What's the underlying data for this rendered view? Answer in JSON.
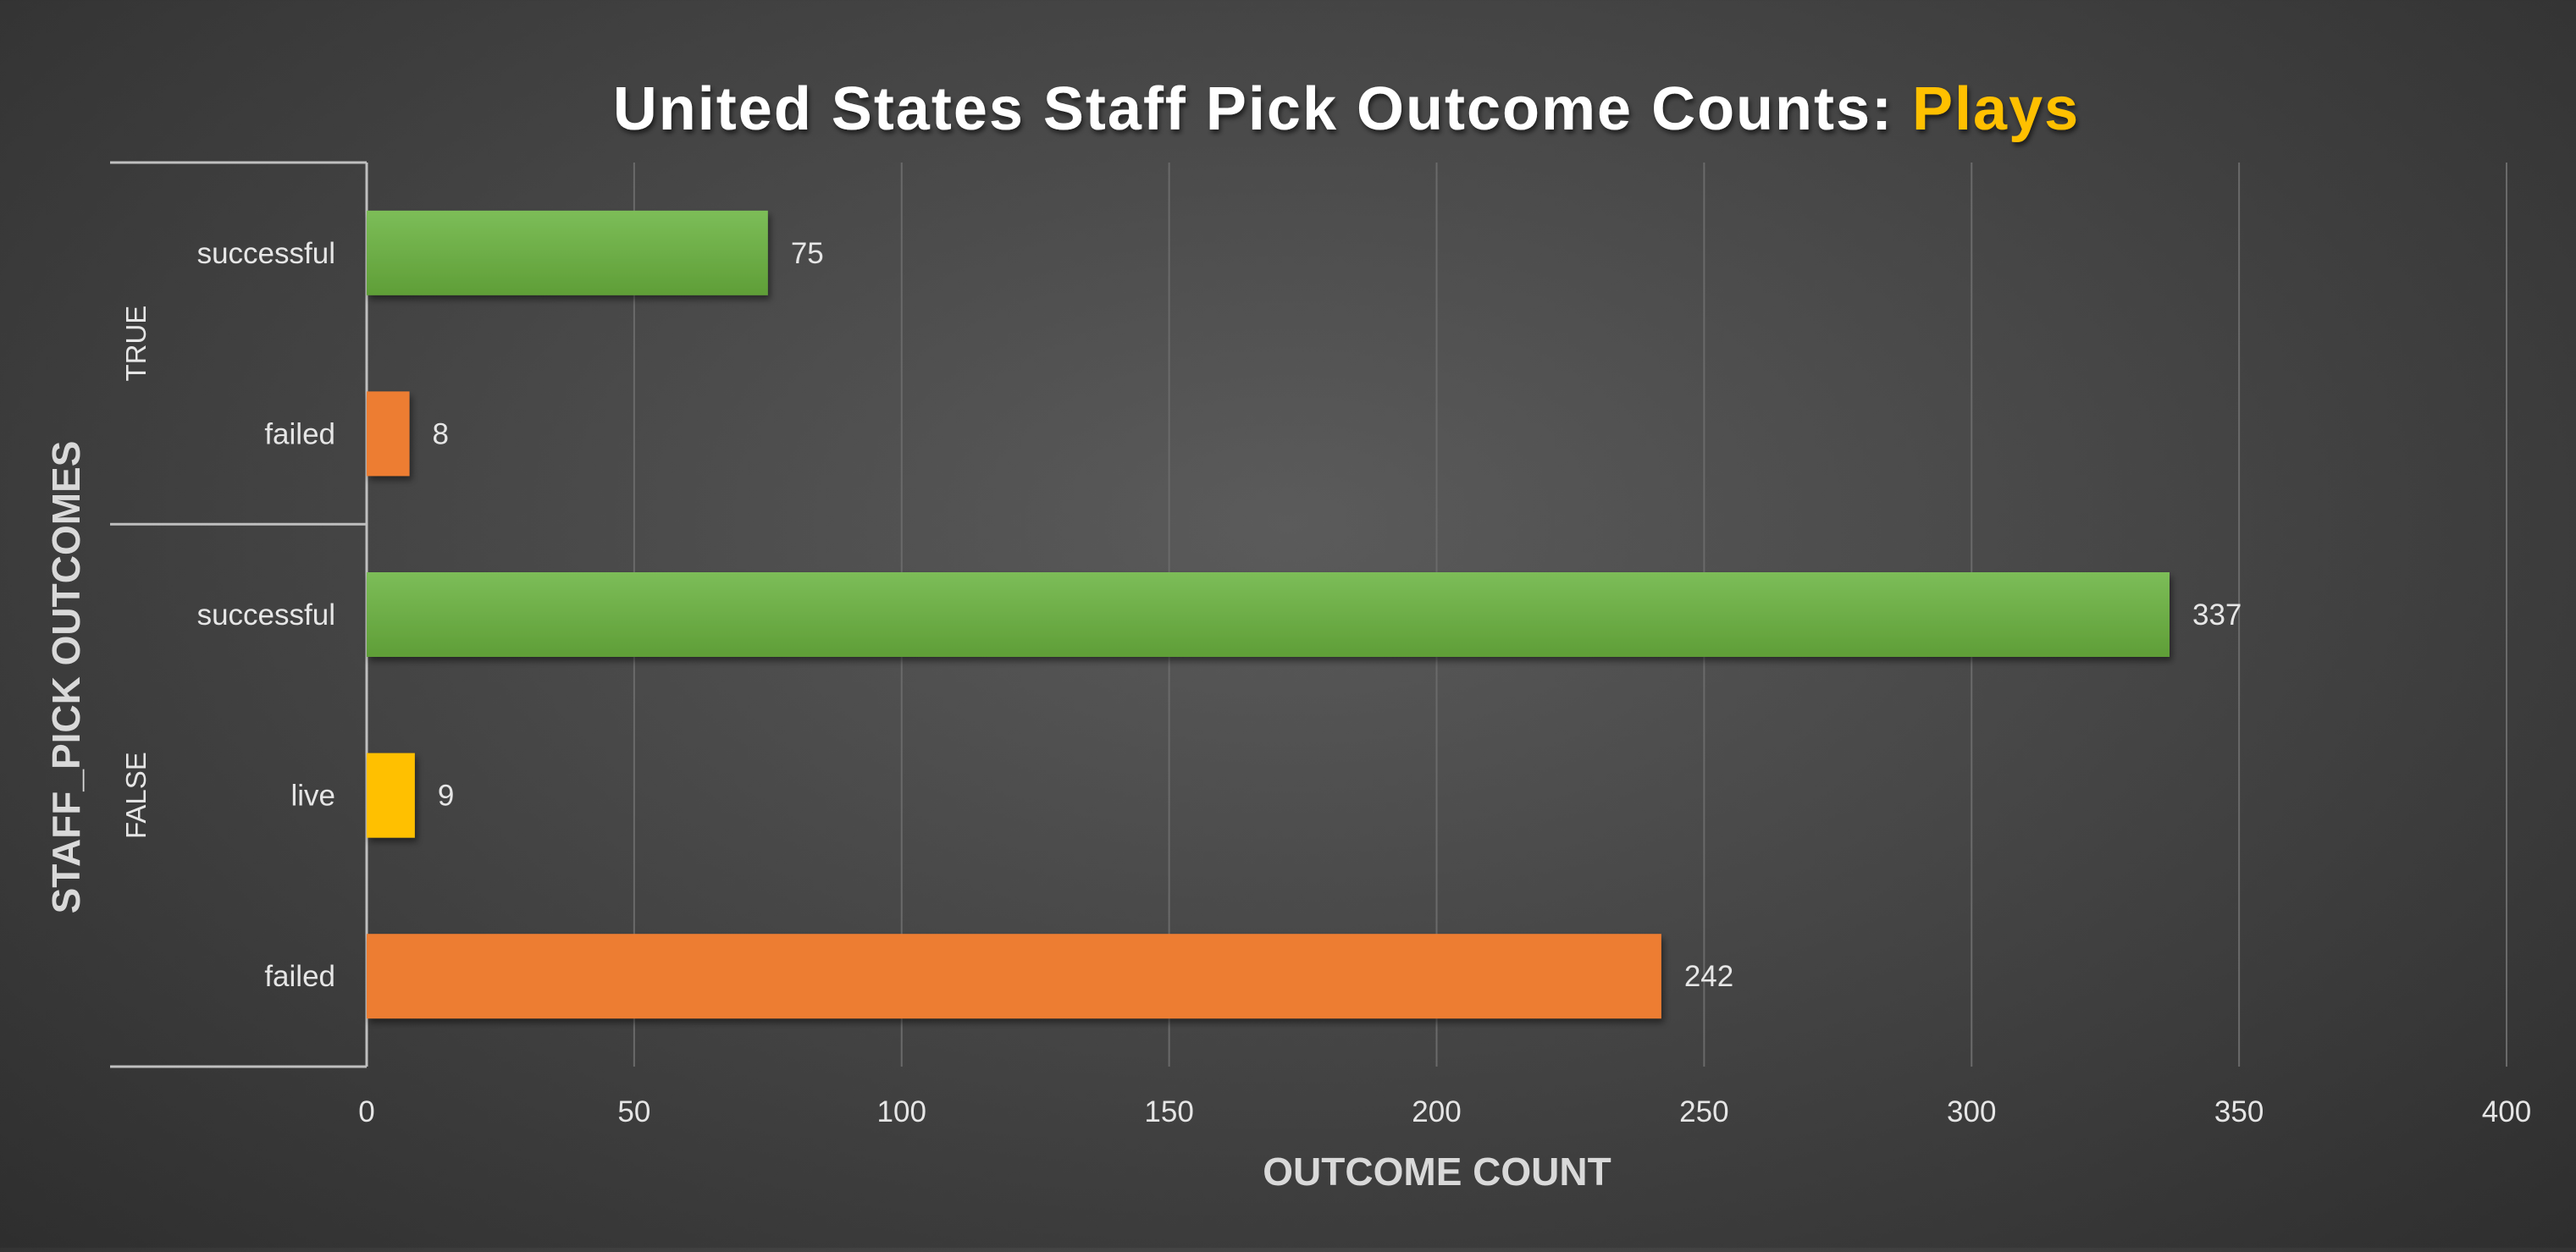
{
  "chart_data": {
    "type": "bar",
    "orientation": "horizontal",
    "title": "United States Staff Pick Outcome Counts: ",
    "title_highlight": "Plays",
    "xlabel": "OUTCOME COUNT",
    "ylabel": "STAFF_PICK OUTCOMES",
    "xlim": [
      0,
      400
    ],
    "xticks": [
      "0",
      "50",
      "100",
      "150",
      "200",
      "250",
      "300",
      "350",
      "400"
    ],
    "grid": "vertical",
    "legend": "none",
    "groups": [
      {
        "label": "TRUE",
        "bars": [
          {
            "category": "successful",
            "value": 75,
            "color": "#6aae45",
            "value_label": "75"
          },
          {
            "category": "failed",
            "value": 8,
            "color": "#ed7d31",
            "value_label": "8"
          }
        ]
      },
      {
        "label": "FALSE",
        "bars": [
          {
            "category": "successful",
            "value": 337,
            "color": "#6aae45",
            "value_label": "337"
          },
          {
            "category": "live",
            "value": 9,
            "color": "#ffc000",
            "value_label": "9"
          },
          {
            "category": "failed",
            "value": 242,
            "color": "#ed7d31",
            "value_label": "242"
          }
        ]
      }
    ]
  },
  "colors": {
    "title": "#ffffff",
    "title_highlight": "#ffc000",
    "gridline": "#6a6a6a",
    "axis_line": "#bfbfbf"
  }
}
